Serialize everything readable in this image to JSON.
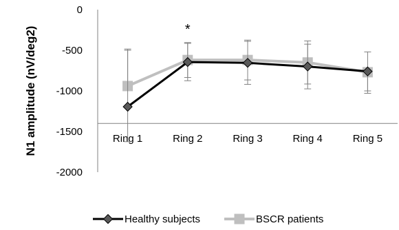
{
  "chart_data": {
    "type": "line",
    "ylabel": "N1 amplitude (nV/deg2)",
    "ylim": [
      -2000,
      0
    ],
    "yticks": [
      0,
      -500,
      -1000,
      -1500,
      -2000
    ],
    "ytick_labels": [
      "0",
      "-500",
      "-1000",
      "-1500",
      "-2000"
    ],
    "categories": [
      "Ring 1",
      "Ring 2",
      "Ring 3",
      "Ring 4",
      "Ring 5"
    ],
    "x_axis_crosses_at": -1400,
    "grid": false,
    "legend_position": "bottom",
    "series": [
      {
        "name": "Healthy subjects",
        "values": [
          -1195,
          -645,
          -655,
          -700,
          -760
        ],
        "error_plus": [
          710,
          230,
          265,
          275,
          240
        ],
        "error_minus": [
          430,
          230,
          265,
          275,
          240
        ],
        "color": "#000000",
        "marker": "diamond",
        "marker_fill": "#595959"
      },
      {
        "name": "BSCR patients",
        "values": [
          -940,
          -620,
          -620,
          -650,
          -770
        ],
        "error_plus": [
          440,
          215,
          245,
          265,
          0
        ],
        "error_minus": [
          0,
          215,
          245,
          265,
          260
        ],
        "color": "#bfbfbf",
        "marker": "square",
        "marker_fill": "#bfbfbf"
      }
    ],
    "annotations": [
      {
        "text": "*",
        "category": "Ring 2",
        "y": -230
      }
    ]
  }
}
